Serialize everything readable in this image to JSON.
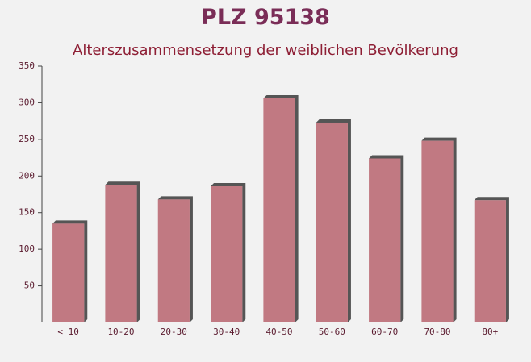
{
  "chart_data": {
    "type": "bar",
    "title": "PLZ 95138",
    "subtitle": "Alterszusammensetzung der weiblichen Bevölkerung",
    "categories": [
      "< 10",
      "10-20",
      "20-30",
      "30-40",
      "40-50",
      "50-60",
      "60-70",
      "70-80",
      "80+"
    ],
    "values": [
      135,
      188,
      168,
      186,
      306,
      273,
      224,
      248,
      167
    ],
    "color": "#b8646e",
    "ylim": [
      0,
      350
    ],
    "yticks": [
      50,
      100,
      150,
      200,
      250,
      300,
      350
    ],
    "grid": false
  }
}
